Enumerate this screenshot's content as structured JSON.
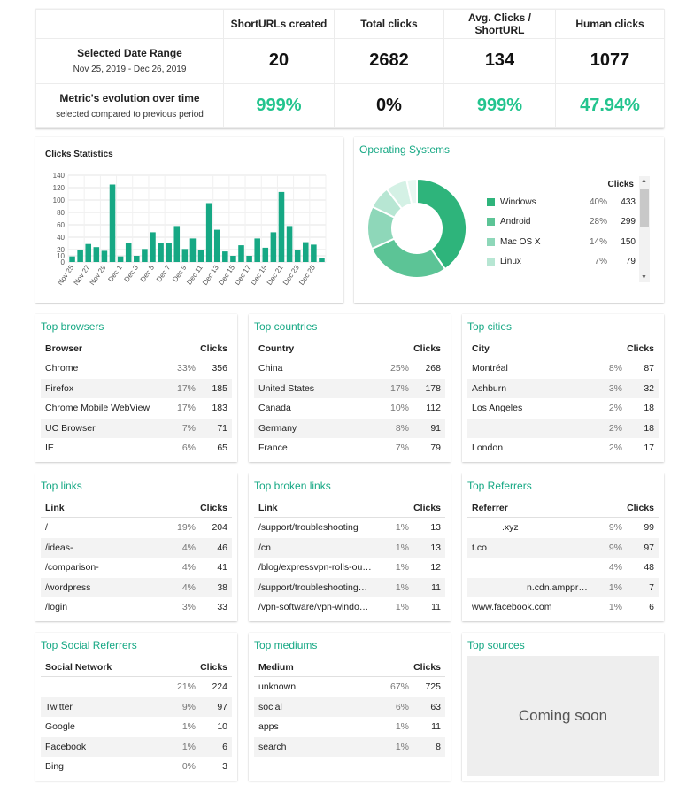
{
  "summary": {
    "headers": [
      "ShortURLs created",
      "Total clicks",
      "Avg. Clicks / ShortURL",
      "Human clicks"
    ],
    "range_title": "Selected Date Range",
    "range_dates": "Nov 25, 2019 - Dec 26, 2019",
    "values": [
      "20",
      "2682",
      "134",
      "1077"
    ],
    "evolution_title": "Metric's evolution over time",
    "evolution_sub": "selected compared to previous period",
    "evolution": [
      "999%",
      "0%",
      "999%",
      "47.94%"
    ]
  },
  "clicks_stats": {
    "title": "Clicks Statistics"
  },
  "chart_data": {
    "type": "bar",
    "title": "Clicks Statistics",
    "color": "#16a884",
    "ylim": [
      0,
      140
    ],
    "yticks": [
      0,
      10,
      20,
      40,
      60,
      80,
      100,
      120,
      140
    ],
    "tick_labels": [
      "Nov 25",
      "Nov 27",
      "Nov 29",
      "Dec 1",
      "Dec 3",
      "Dec 5",
      "Dec 7",
      "Dec 9",
      "Dec 11",
      "Dec 13",
      "Dec 15",
      "Dec 17",
      "Dec 19",
      "Dec 21",
      "Dec 23",
      "Dec 25"
    ],
    "values": [
      9,
      20,
      29,
      24,
      18,
      125,
      9,
      30,
      10,
      21,
      48,
      30,
      31,
      58,
      21,
      38,
      20,
      95,
      52,
      17,
      10,
      27,
      10,
      38,
      23,
      48,
      113,
      58,
      20,
      32,
      28,
      7
    ]
  },
  "os": {
    "title": "Operating Systems",
    "clicks_label": "Clicks",
    "items": [
      {
        "name": "Windows",
        "pct": "40%",
        "clicks": "433",
        "value": 433,
        "color": "#2eb47b"
      },
      {
        "name": "Android",
        "pct": "28%",
        "clicks": "299",
        "value": 299,
        "color": "#5cc496"
      },
      {
        "name": "Mac OS X",
        "pct": "14%",
        "clicks": "150",
        "value": 150,
        "color": "#8ed7b9"
      },
      {
        "name": "Linux",
        "pct": "7%",
        "clicks": "79",
        "value": 79,
        "color": "#b7e6d3"
      }
    ],
    "other_values": [
      76,
      36
    ],
    "other_colors": [
      "#d4f1e5",
      "#e9f8f2"
    ]
  },
  "browsers": {
    "title": "Top browsers",
    "col_name": "Browser",
    "col_clicks": "Clicks",
    "rows": [
      {
        "name": "Chrome",
        "pct": "33%",
        "clicks": "356"
      },
      {
        "name": "Firefox",
        "pct": "17%",
        "clicks": "185"
      },
      {
        "name": "Chrome Mobile WebView",
        "pct": "17%",
        "clicks": "183"
      },
      {
        "name": "UC Browser",
        "pct": "7%",
        "clicks": "71"
      },
      {
        "name": "IE",
        "pct": "6%",
        "clicks": "65"
      }
    ]
  },
  "countries": {
    "title": "Top countries",
    "col_name": "Country",
    "col_clicks": "Clicks",
    "rows": [
      {
        "name": "China",
        "pct": "25%",
        "clicks": "268"
      },
      {
        "name": "United States",
        "pct": "17%",
        "clicks": "178"
      },
      {
        "name": "Canada",
        "pct": "10%",
        "clicks": "112"
      },
      {
        "name": "Germany",
        "pct": "8%",
        "clicks": "91"
      },
      {
        "name": "France",
        "pct": "7%",
        "clicks": "79"
      }
    ]
  },
  "cities": {
    "title": "Top cities",
    "col_name": "City",
    "col_clicks": "Clicks",
    "rows": [
      {
        "name": "Montréal",
        "pct": "8%",
        "clicks": "87"
      },
      {
        "name": "Ashburn",
        "pct": "3%",
        "clicks": "32"
      },
      {
        "name": "Los Angeles",
        "pct": "2%",
        "clicks": "18"
      },
      {
        "name": "",
        "pct": "2%",
        "clicks": "18"
      },
      {
        "name": "London",
        "pct": "2%",
        "clicks": "17"
      }
    ]
  },
  "links": {
    "title": "Top links",
    "col_name": "Link",
    "col_clicks": "Clicks",
    "rows": [
      {
        "name": "/",
        "pct": "19%",
        "clicks": "204"
      },
      {
        "name": "/ideas-",
        "pct": "4%",
        "clicks": "46"
      },
      {
        "name": "/comparison-",
        "pct": "4%",
        "clicks": "41"
      },
      {
        "name": "/wordpress",
        "pct": "4%",
        "clicks": "38"
      },
      {
        "name": "/login",
        "pct": "3%",
        "clicks": "33"
      }
    ]
  },
  "broken": {
    "title": "Top broken links",
    "col_name": "Link",
    "col_clicks": "Clicks",
    "rows": [
      {
        "name": "/support/troubleshooting",
        "pct": "1%",
        "clicks": "13"
      },
      {
        "name": "/cn",
        "pct": "1%",
        "clicks": "13"
      },
      {
        "name": "/blog/expressvpn-rolls-ou…",
        "pct": "1%",
        "clicks": "12"
      },
      {
        "name": "/support/troubleshooting…",
        "pct": "1%",
        "clicks": "11"
      },
      {
        "name": "/vpn-software/vpn-windo…",
        "pct": "1%",
        "clicks": "11"
      }
    ]
  },
  "referrers": {
    "title": "Top Referrers",
    "col_name": "Referrer",
    "col_clicks": "Clicks",
    "rows": [
      {
        "name": ".xyz",
        "pct": "9%",
        "clicks": "99"
      },
      {
        "name": "t.co",
        "pct": "9%",
        "clicks": "97"
      },
      {
        "name": "",
        "pct": "4%",
        "clicks": "48"
      },
      {
        "name": "n.cdn.amppr…",
        "pct": "1%",
        "clicks": "7"
      },
      {
        "name": "www.facebook.com",
        "pct": "1%",
        "clicks": "6"
      }
    ]
  },
  "social": {
    "title": "Top Social Referrers",
    "col_name": "Social Network",
    "col_clicks": "Clicks",
    "rows": [
      {
        "name": "",
        "pct": "21%",
        "clicks": "224"
      },
      {
        "name": "Twitter",
        "pct": "9%",
        "clicks": "97"
      },
      {
        "name": "Google",
        "pct": "1%",
        "clicks": "10"
      },
      {
        "name": "Facebook",
        "pct": "1%",
        "clicks": "6"
      },
      {
        "name": "Bing",
        "pct": "0%",
        "clicks": "3"
      }
    ]
  },
  "mediums": {
    "title": "Top mediums",
    "col_name": "Medium",
    "col_clicks": "Clicks",
    "rows": [
      {
        "name": "unknown",
        "pct": "67%",
        "clicks": "725"
      },
      {
        "name": "social",
        "pct": "6%",
        "clicks": "63"
      },
      {
        "name": "apps",
        "pct": "1%",
        "clicks": "11"
      },
      {
        "name": "search",
        "pct": "1%",
        "clicks": "8"
      }
    ]
  },
  "sources": {
    "title": "Top sources",
    "coming_soon": "Coming soon"
  }
}
